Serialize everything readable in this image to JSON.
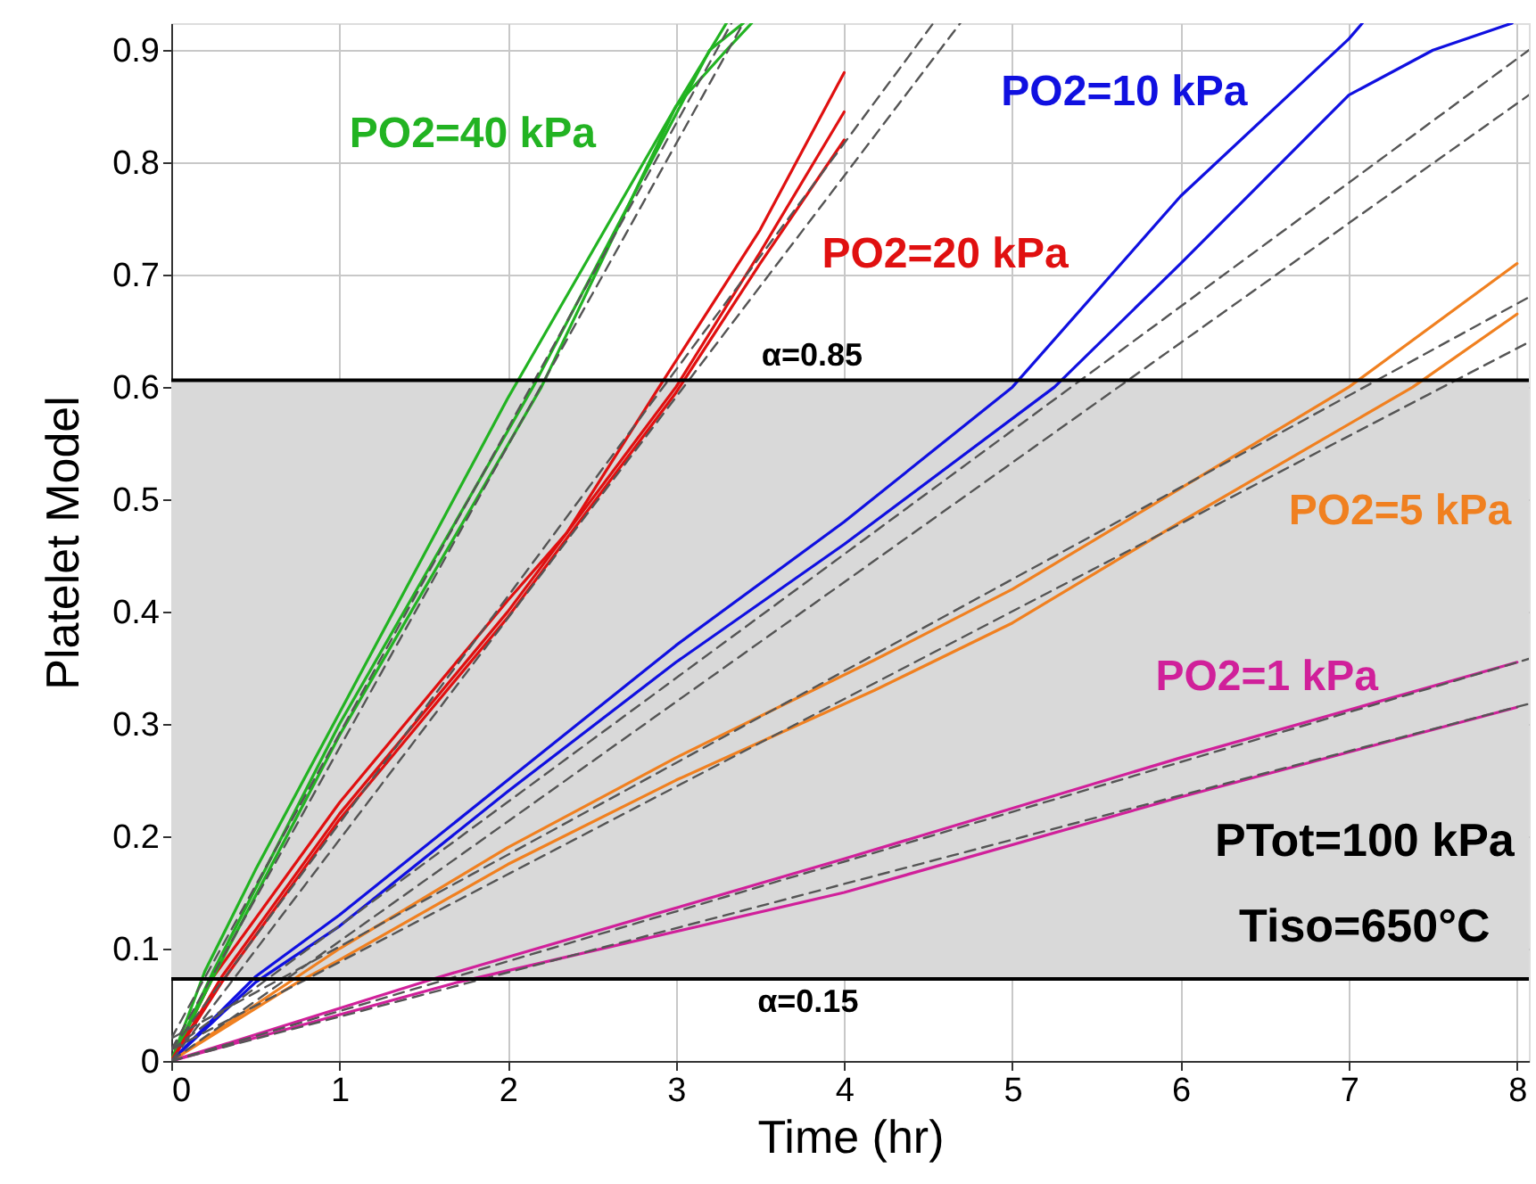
{
  "chart_data": {
    "type": "line",
    "xlabel": "Time (hr)",
    "ylabel": "Platelet Model",
    "xlim": [
      0,
      8.07
    ],
    "ylim": [
      0,
      0.924
    ],
    "xticks": [
      0,
      1,
      2,
      3,
      4,
      5,
      6,
      7,
      8
    ],
    "yticks": [
      0,
      0.1,
      0.2,
      0.3,
      0.4,
      0.5,
      0.6,
      0.7,
      0.8,
      0.9
    ],
    "grid": true,
    "marker": "none",
    "series": [
      {
        "name": "PO2=40 kPa",
        "color": "#22b322",
        "line_style": "solid",
        "x": [
          0,
          0.2,
          0.5,
          1,
          1.5,
          2,
          2.5,
          3,
          3.3
        ],
        "values": [
          0,
          0.08,
          0.17,
          0.31,
          0.45,
          0.59,
          0.72,
          0.85,
          0.924
        ]
      },
      {
        "name": "PO2=20 kPa",
        "color": "#e01010",
        "line_style": "solid",
        "x": [
          0,
          0.25,
          1,
          2,
          2.35,
          2.9,
          3.5,
          4
        ],
        "values": [
          0,
          0.075,
          0.23,
          0.41,
          0.47,
          0.6,
          0.74,
          0.88
        ]
      },
      {
        "name": "PO2=10 kPa",
        "color": "#1010e0",
        "line_style": "solid",
        "x": [
          0,
          0.5,
          1,
          2,
          3,
          4,
          5,
          6,
          7,
          7.08
        ],
        "values": [
          0,
          0.075,
          0.13,
          0.25,
          0.37,
          0.48,
          0.6,
          0.77,
          0.91,
          0.924
        ]
      },
      {
        "name": "PO2=5 kPa",
        "color": "#f08020",
        "line_style": "solid",
        "x": [
          0,
          0.75,
          1,
          2,
          3,
          4.18,
          5,
          6,
          7,
          8
        ],
        "values": [
          0,
          0.075,
          0.1,
          0.19,
          0.27,
          0.357,
          0.42,
          0.51,
          0.6,
          0.71
        ]
      },
      {
        "name": "PO2=1 kPa",
        "color": "#d0209a",
        "line_style": "solid",
        "x": [
          0,
          1.6,
          4,
          6,
          8
        ],
        "values": [
          0,
          0.075,
          0.18,
          0.27,
          0.355
        ]
      },
      {
        "color": "#22b322",
        "line_style": "solid",
        "x": [
          0,
          0.25,
          1,
          2.15,
          3.2,
          3.4
        ],
        "values": [
          0,
          0.08,
          0.3,
          0.6,
          0.9,
          0.924
        ]
      },
      {
        "color": "#22b322",
        "line_style": "solid",
        "x": [
          0,
          0.25,
          1,
          2.2,
          3.0,
          3.3,
          3.45
        ],
        "values": [
          0,
          0.075,
          0.29,
          0.6,
          0.85,
          0.9,
          0.924
        ]
      },
      {
        "color": "#e01010",
        "line_style": "solid",
        "x": [
          0,
          0.3,
          1,
          2,
          3.0,
          3.5,
          4
        ],
        "values": [
          0,
          0.075,
          0.22,
          0.4,
          0.6,
          0.72,
          0.845
        ]
      },
      {
        "color": "#e01010",
        "line_style": "solid",
        "x": [
          0,
          0.3,
          1,
          2,
          3.0,
          3.5,
          4
        ],
        "values": [
          0,
          0.07,
          0.215,
          0.395,
          0.595,
          0.71,
          0.82
        ]
      },
      {
        "color": "#1010e0",
        "line_style": "solid",
        "x": [
          0,
          0.5,
          1,
          2,
          3,
          4,
          5.25,
          6,
          7,
          7.5,
          7.97
        ],
        "values": [
          0,
          0.07,
          0.12,
          0.24,
          0.355,
          0.46,
          0.6,
          0.71,
          0.86,
          0.9,
          0.924
        ]
      },
      {
        "color": "#f08020",
        "line_style": "solid",
        "x": [
          0,
          0.75,
          1,
          2,
          3,
          4.18,
          5,
          6,
          7.38,
          8
        ],
        "values": [
          0,
          0.07,
          0.09,
          0.175,
          0.25,
          0.33,
          0.39,
          0.48,
          0.6,
          0.665
        ]
      },
      {
        "color": "#d0209a",
        "line_style": "solid",
        "x": [
          0,
          1.7,
          4,
          6,
          8
        ],
        "values": [
          0,
          0.07,
          0.15,
          0.235,
          0.315
        ]
      },
      {
        "color": "#555555",
        "line_style": "dashed",
        "x": [
          0,
          3.33
        ],
        "values": [
          0.02,
          0.924
        ]
      },
      {
        "color": "#555555",
        "line_style": "dashed",
        "x": [
          0,
          3.4
        ],
        "values": [
          0.01,
          0.924
        ]
      },
      {
        "color": "#555555",
        "line_style": "dashed",
        "x": [
          0,
          4.53
        ],
        "values": [
          0.01,
          0.924
        ]
      },
      {
        "color": "#555555",
        "line_style": "dashed",
        "x": [
          0,
          4.69
        ],
        "values": [
          0,
          0.924
        ]
      },
      {
        "color": "#555555",
        "line_style": "dashed",
        "x": [
          0,
          8.07
        ],
        "values": [
          0.01,
          0.9
        ]
      },
      {
        "color": "#555555",
        "line_style": "dashed",
        "x": [
          0,
          8.07
        ],
        "values": [
          0,
          0.86
        ]
      },
      {
        "color": "#555555",
        "line_style": "dashed",
        "x": [
          0,
          8.07
        ],
        "values": [
          0.02,
          0.68
        ]
      },
      {
        "color": "#555555",
        "line_style": "dashed",
        "x": [
          0,
          8.07
        ],
        "values": [
          0.01,
          0.64
        ]
      },
      {
        "color": "#555555",
        "line_style": "dashed",
        "x": [
          0,
          8.07
        ],
        "values": [
          0,
          0.358
        ]
      },
      {
        "color": "#555555",
        "line_style": "dashed",
        "x": [
          0,
          8.07
        ],
        "values": [
          0,
          0.318
        ]
      }
    ],
    "bands": [
      {
        "axis": "y",
        "from": 0.073,
        "to": 0.606,
        "color": "#d9d9d9"
      }
    ],
    "ref_lines": [
      {
        "axis": "y",
        "value": 0.606,
        "color": "#000000"
      },
      {
        "axis": "y",
        "value": 0.073,
        "color": "#000000"
      }
    ],
    "annotations": [
      "α=0.85",
      "α=0.15",
      "PTot=100 kPa",
      "Tiso=650°C"
    ]
  }
}
